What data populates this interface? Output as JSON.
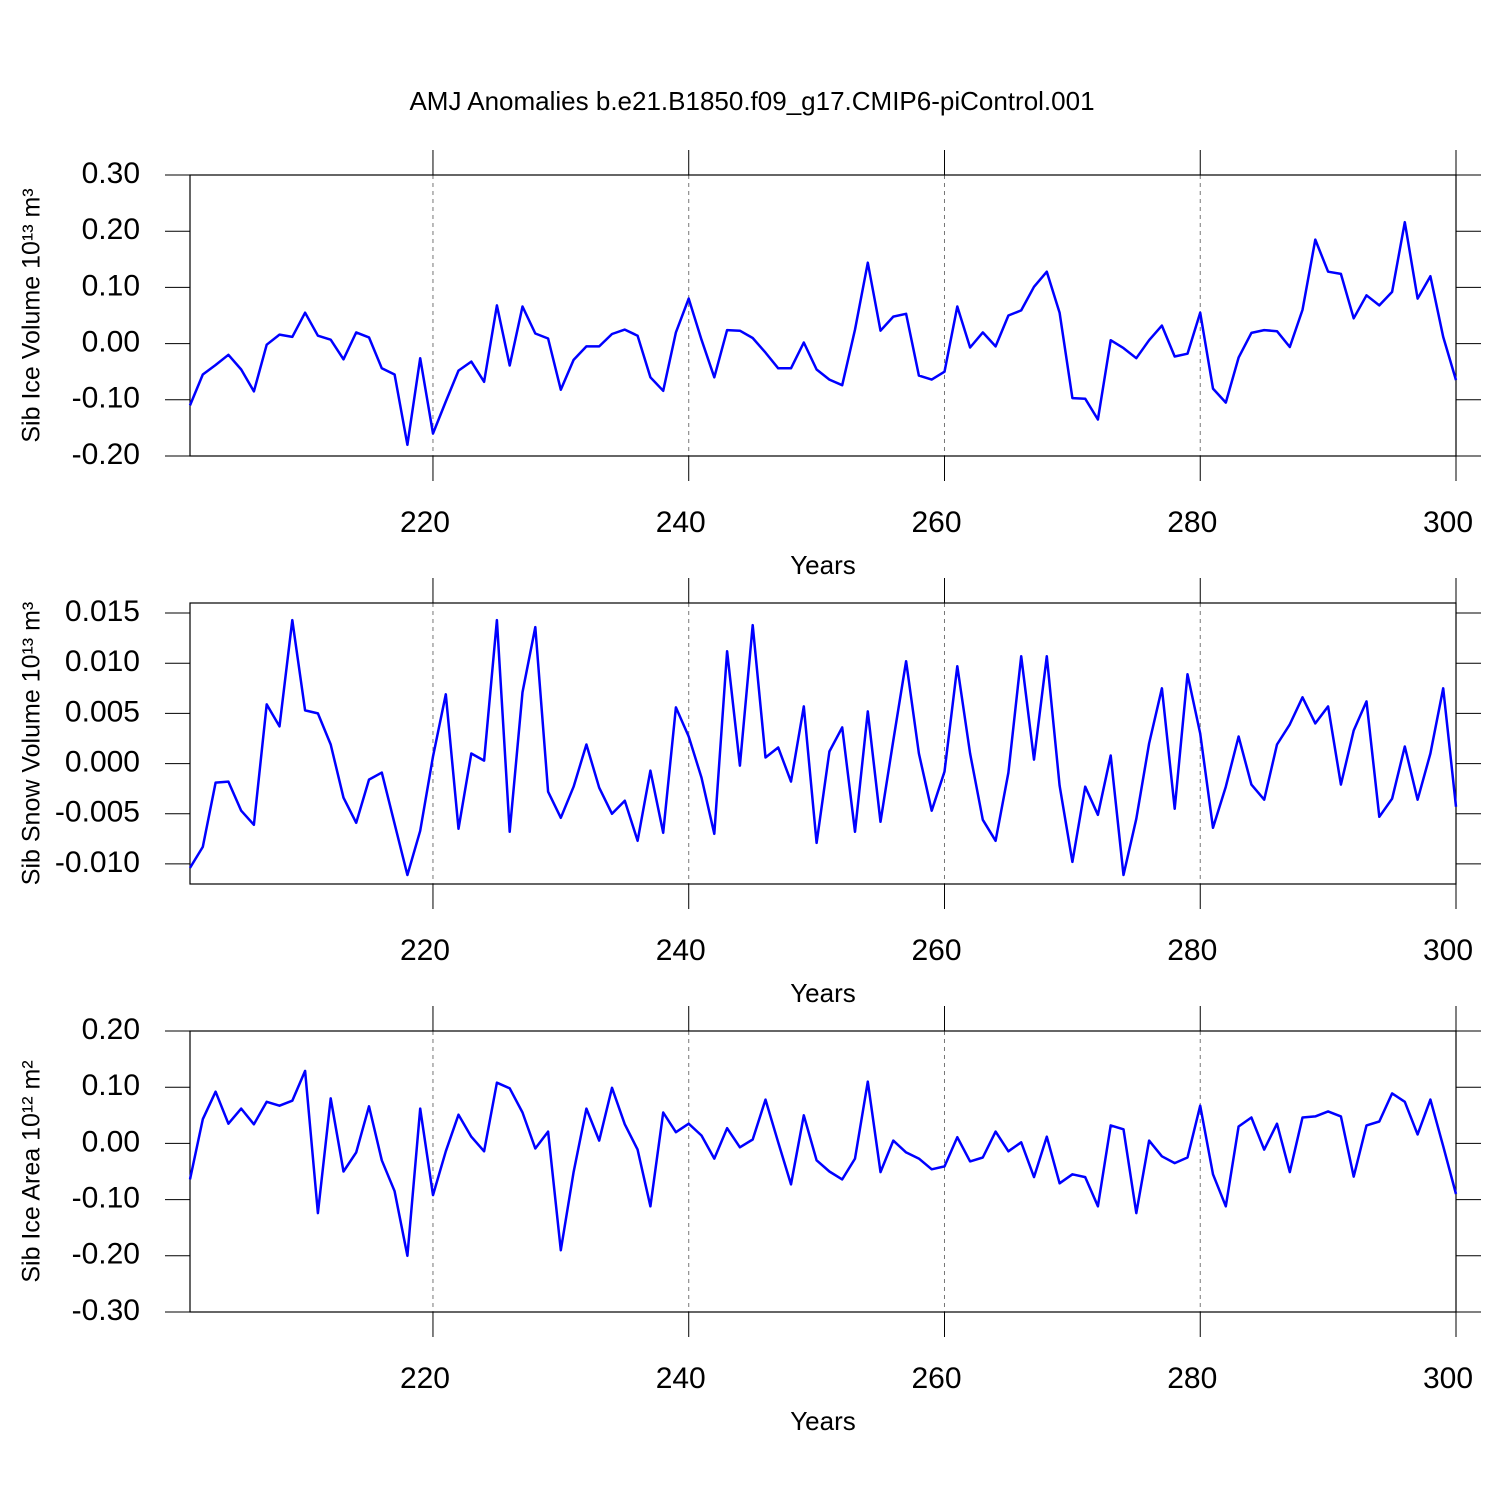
{
  "title": "AMJ Anomalies b.e21.B1850.f09_g17.CMIP6-piControl.001",
  "chart_data": [
    {
      "type": "line",
      "ylabel": "Sib Ice Volume 10¹³ m³",
      "xlabel": "Years",
      "color": "#0000ff",
      "xgrid": true,
      "xlim": [
        201,
        300
      ],
      "xticks": [
        220,
        240,
        260,
        280,
        300
      ],
      "ylim": [
        -0.2,
        0.3
      ],
      "yticks": [
        {
          "value": -0.2,
          "label": "-0.20"
        },
        {
          "value": -0.1,
          "label": "-0.10"
        },
        {
          "value": 0,
          "label": "0.00"
        },
        {
          "value": 0.1,
          "label": "0.10"
        },
        {
          "value": 0.2,
          "label": "0.20"
        },
        {
          "value": 0.3,
          "label": "0.30"
        }
      ],
      "x": [
        201,
        202,
        203,
        204,
        205,
        206,
        207,
        208,
        209,
        210,
        211,
        212,
        213,
        214,
        215,
        216,
        217,
        218,
        219,
        220,
        221,
        222,
        223,
        224,
        225,
        226,
        227,
        228,
        229,
        230,
        231,
        232,
        233,
        234,
        235,
        236,
        237,
        238,
        239,
        240,
        241,
        242,
        243,
        244,
        245,
        246,
        247,
        248,
        249,
        250,
        251,
        252,
        253,
        254,
        255,
        256,
        257,
        258,
        259,
        260,
        261,
        262,
        263,
        264,
        265,
        266,
        267,
        268,
        269,
        270,
        271,
        272,
        273,
        274,
        275,
        276,
        277,
        278,
        279,
        280,
        281,
        282,
        283,
        284,
        285,
        286,
        287,
        288,
        289,
        290,
        291,
        292,
        293,
        294,
        295,
        296,
        297,
        298,
        299,
        300
      ],
      "values": [
        -0.11,
        -0.055,
        -0.038,
        -0.02,
        -0.046,
        -0.085,
        -0.002,
        0.016,
        0.012,
        0.055,
        0.014,
        0.007,
        -0.028,
        0.02,
        0.011,
        -0.044,
        -0.055,
        -0.18,
        -0.026,
        -0.16,
        -0.103,
        -0.048,
        -0.032,
        -0.068,
        0.068,
        -0.039,
        0.066,
        0.018,
        0.009,
        -0.082,
        -0.029,
        -0.005,
        -0.005,
        0.017,
        0.025,
        0.014,
        -0.06,
        -0.084,
        0.02,
        0.08,
        0.007,
        -0.06,
        0.024,
        0.023,
        0.01,
        -0.016,
        -0.044,
        -0.044,
        0.002,
        -0.046,
        -0.064,
        -0.074,
        0.025,
        0.144,
        0.023,
        0.048,
        0.053,
        -0.057,
        -0.064,
        -0.05,
        0.066,
        -0.007,
        0.02,
        -0.005,
        0.05,
        0.059,
        0.101,
        0.128,
        0.055,
        -0.097,
        -0.098,
        -0.135,
        0.006,
        -0.008,
        -0.026,
        0.006,
        0.032,
        -0.023,
        -0.018,
        0.055,
        -0.08,
        -0.105,
        -0.025,
        0.019,
        0.024,
        0.022,
        -0.006,
        0.06,
        0.185,
        0.128,
        0.124,
        0.045,
        0.086,
        0.068,
        0.092,
        0.216,
        0.08,
        0.12,
        0.012,
        -0.065
      ]
    },
    {
      "type": "line",
      "ylabel": "Sib Snow Volume 10¹³ m³",
      "xlabel": "Years",
      "color": "#0000ff",
      "xgrid": true,
      "xlim": [
        201,
        300
      ],
      "xticks": [
        220,
        240,
        260,
        280,
        300
      ],
      "ylim": [
        -0.012,
        0.016
      ],
      "yticks": [
        {
          "value": -0.01,
          "label": "-0.010"
        },
        -0.005,
        {
          "value": 0,
          "label": "0.000"
        },
        0.005,
        {
          "value": 0.01,
          "label": "0.010"
        },
        0.015
      ],
      "x": [
        201,
        202,
        203,
        204,
        205,
        206,
        207,
        208,
        209,
        210,
        211,
        212,
        213,
        214,
        215,
        216,
        217,
        218,
        219,
        220,
        221,
        222,
        223,
        224,
        225,
        226,
        227,
        228,
        229,
        230,
        231,
        232,
        233,
        234,
        235,
        236,
        237,
        238,
        239,
        240,
        241,
        242,
        243,
        244,
        245,
        246,
        247,
        248,
        249,
        250,
        251,
        252,
        253,
        254,
        255,
        256,
        257,
        258,
        259,
        260,
        261,
        262,
        263,
        264,
        265,
        266,
        267,
        268,
        269,
        270,
        271,
        272,
        273,
        274,
        275,
        276,
        277,
        278,
        279,
        280,
        281,
        282,
        283,
        284,
        285,
        286,
        287,
        288,
        289,
        290,
        291,
        292,
        293,
        294,
        295,
        296,
        297,
        298,
        299,
        300
      ],
      "values": [
        -0.0104,
        -0.0083,
        -0.0019,
        -0.0018,
        -0.0047,
        -0.0061,
        0.0059,
        0.0037,
        0.0143,
        0.0053,
        0.005,
        0.0019,
        -0.0034,
        -0.0059,
        -0.0016,
        -0.0009,
        -0.006,
        -0.0111,
        -0.0067,
        0.0007,
        0.0069,
        -0.0065,
        0.001,
        0.0003,
        0.0143,
        -0.0068,
        0.0071,
        0.0136,
        -0.0028,
        -0.0054,
        -0.0023,
        0.0019,
        -0.0024,
        -0.005,
        -0.0037,
        -0.0077,
        -0.0007,
        -0.0069,
        0.0056,
        0.0027,
        -0.0014,
        -0.007,
        0.0112,
        -0.0002,
        0.0138,
        0.0006,
        0.0016,
        -0.0018,
        0.0057,
        -0.0079,
        0.0012,
        0.0036,
        -0.0068,
        0.0052,
        -0.0058,
        0.0023,
        0.0102,
        0.001,
        -0.0047,
        -0.0008,
        0.0097,
        0.001,
        -0.0056,
        -0.0077,
        -0.0009,
        0.0107,
        0.0004,
        0.0107,
        -0.0022,
        -0.0098,
        -0.0023,
        -0.0051,
        0.0008,
        -0.0111,
        -0.0055,
        0.002,
        0.0075,
        -0.0045,
        0.0089,
        0.003,
        -0.0064,
        -0.0023,
        0.0027,
        -0.0021,
        -0.0036,
        0.0019,
        0.0039,
        0.0066,
        0.004,
        0.0057,
        -0.0021,
        0.0033,
        0.0062,
        -0.0053,
        -0.0035,
        0.0017,
        -0.0036,
        0.001,
        0.0075,
        -0.0043
      ]
    },
    {
      "type": "line",
      "ylabel": "Sib Ice Area 10¹² m²",
      "xlabel": "Years",
      "color": "#0000ff",
      "xgrid": true,
      "xlim": [
        201,
        300
      ],
      "xticks": [
        220,
        240,
        260,
        280,
        300
      ],
      "ylim": [
        -0.3,
        0.2
      ],
      "yticks": [
        {
          "value": -0.3,
          "label": "-0.30"
        },
        {
          "value": -0.2,
          "label": "-0.20"
        },
        {
          "value": -0.1,
          "label": "-0.10"
        },
        {
          "value": 0,
          "label": "0.00"
        },
        {
          "value": 0.1,
          "label": "0.10"
        },
        {
          "value": 0.2,
          "label": "0.20"
        }
      ],
      "x": [
        201,
        202,
        203,
        204,
        205,
        206,
        207,
        208,
        209,
        210,
        211,
        212,
        213,
        214,
        215,
        216,
        217,
        218,
        219,
        220,
        221,
        222,
        223,
        224,
        225,
        226,
        227,
        228,
        229,
        230,
        231,
        232,
        233,
        234,
        235,
        236,
        237,
        238,
        239,
        240,
        241,
        242,
        243,
        244,
        245,
        246,
        247,
        248,
        249,
        250,
        251,
        252,
        253,
        254,
        255,
        256,
        257,
        258,
        259,
        260,
        261,
        262,
        263,
        264,
        265,
        266,
        267,
        268,
        269,
        270,
        271,
        272,
        273,
        274,
        275,
        276,
        277,
        278,
        279,
        280,
        281,
        282,
        283,
        284,
        285,
        286,
        287,
        288,
        289,
        290,
        291,
        292,
        293,
        294,
        295,
        296,
        297,
        298,
        299,
        300
      ],
      "values": [
        -0.064,
        0.043,
        0.092,
        0.035,
        0.062,
        0.034,
        0.074,
        0.067,
        0.076,
        0.129,
        -0.124,
        0.08,
        -0.05,
        -0.016,
        0.066,
        -0.03,
        -0.085,
        -0.2,
        0.062,
        -0.092,
        -0.014,
        0.051,
        0.012,
        -0.014,
        0.108,
        0.098,
        0.055,
        -0.009,
        0.021,
        -0.19,
        -0.051,
        0.062,
        0.005,
        0.099,
        0.034,
        -0.011,
        -0.112,
        0.055,
        0.02,
        0.035,
        0.014,
        -0.027,
        0.027,
        -0.007,
        0.007,
        0.078,
        0.002,
        -0.073,
        0.05,
        -0.03,
        -0.05,
        -0.064,
        -0.027,
        0.11,
        -0.051,
        0.005,
        -0.016,
        -0.027,
        -0.046,
        -0.041,
        0.011,
        -0.032,
        -0.025,
        0.021,
        -0.014,
        0.002,
        -0.06,
        0.012,
        -0.071,
        -0.055,
        -0.06,
        -0.112,
        0.032,
        0.025,
        -0.124,
        0.005,
        -0.023,
        -0.035,
        -0.025,
        0.067,
        -0.055,
        -0.112,
        0.03,
        0.046,
        -0.011,
        0.035,
        -0.051,
        0.046,
        0.048,
        0.057,
        0.048,
        -0.059,
        0.032,
        0.039,
        0.089,
        0.074,
        0.016,
        0.078,
        -0.005,
        -0.09
      ]
    }
  ]
}
